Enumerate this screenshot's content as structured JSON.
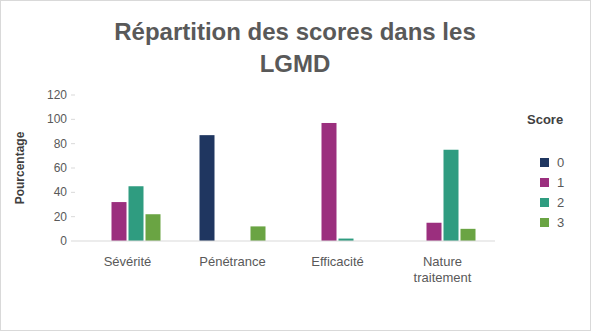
{
  "chart_data": {
    "type": "bar",
    "title": "Répartition des scores dans les LGMD",
    "y_label": "Pourcentage",
    "legend_title": "Score",
    "legend": "right",
    "grid": false,
    "categories": [
      "Sévérité",
      "Pénétrance",
      "Efficacité",
      "Nature traitement"
    ],
    "series": [
      {
        "name": "0",
        "color": "#1f3660",
        "values": [
          0,
          87,
          0,
          0
        ]
      },
      {
        "name": "1",
        "color": "#9b2f7e",
        "values": [
          32,
          0,
          97,
          15
        ]
      },
      {
        "name": "2",
        "color": "#2f9c80",
        "values": [
          45,
          0,
          2,
          75
        ]
      },
      {
        "name": "3",
        "color": "#6aa443",
        "values": [
          22,
          12,
          0,
          10
        ]
      }
    ],
    "ylim": [
      0,
      120
    ],
    "yticks": [
      0,
      20,
      40,
      60,
      80,
      100,
      120
    ]
  }
}
